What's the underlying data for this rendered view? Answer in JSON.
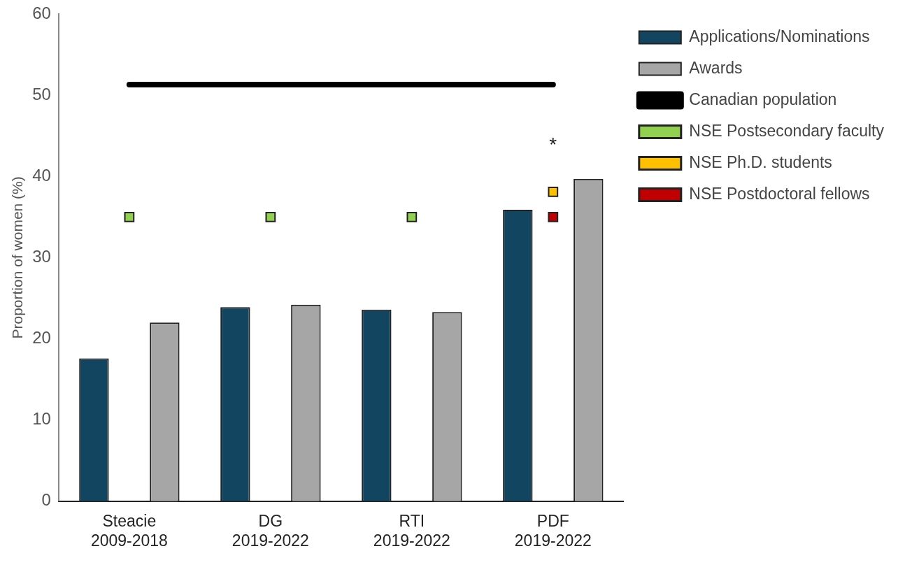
{
  "chart_data": {
    "type": "bar",
    "ylabel": "Proportion of women (%)",
    "categories": [
      "Steacie 2009-2018",
      "DG 2019-2022",
      "RTI 2019-2022",
      "PDF 2019-2022"
    ],
    "series": [
      {
        "name": "Applications/Nominations",
        "color": "#124560",
        "values": [
          17.6,
          23.9,
          23.6,
          35.9
        ]
      },
      {
        "name": "Awards",
        "color": "#a6a6a6",
        "values": [
          22.0,
          24.2,
          23.3,
          39.7
        ]
      },
      {
        "name": "Canadian population",
        "type": "line",
        "color": "#000000",
        "values": [
          51.3,
          51.3,
          51.3,
          51.3
        ]
      },
      {
        "name": "NSE Postsecondary faculty",
        "type": "scatter",
        "marker": "square",
        "color": "#92d050",
        "values": [
          35.0,
          35.0,
          35.0,
          null
        ]
      },
      {
        "name": "NSE Ph.D. students",
        "type": "scatter",
        "marker": "square",
        "color": "#ffc000",
        "values": [
          null,
          null,
          null,
          38.1
        ]
      },
      {
        "name": "NSE Postdoctoral fellows",
        "type": "scatter",
        "marker": "square",
        "color": "#c00000",
        "values": [
          null,
          null,
          null,
          35.0
        ]
      }
    ],
    "ylim": [
      0,
      60
    ],
    "yticks": [
      0,
      10,
      20,
      30,
      40,
      50,
      60
    ],
    "grid": false,
    "legend": "right",
    "annotations": [
      "*"
    ]
  }
}
